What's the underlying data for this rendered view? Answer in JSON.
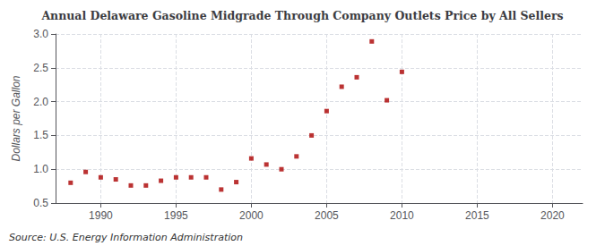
{
  "chart_data": {
    "type": "scatter",
    "title": "Annual Delaware Gasoline Midgrade Through Company Outlets Price by All Sellers",
    "ylabel": "Dollars per Gallon",
    "annotations": [
      "Source: U.S. Energy Information Administration"
    ],
    "x": [
      1988,
      1989,
      1990,
      1991,
      1992,
      1993,
      1994,
      1995,
      1996,
      1997,
      1998,
      1999,
      2000,
      2001,
      2002,
      2003,
      2004,
      2005,
      2006,
      2007,
      2008,
      2009,
      2010
    ],
    "values": [
      0.8,
      0.96,
      0.88,
      0.85,
      0.76,
      0.76,
      0.83,
      0.88,
      0.88,
      0.88,
      0.7,
      0.81,
      1.16,
      1.07,
      1.0,
      1.19,
      1.5,
      1.86,
      2.22,
      2.36,
      2.89,
      2.02,
      2.44
    ],
    "color": "#aa0000",
    "marker": "square",
    "xlim": [
      1987,
      2022
    ],
    "xticks": [
      1990,
      1995,
      2000,
      2005,
      2010,
      2015,
      2020
    ],
    "ylim": [
      0.5,
      3.0
    ],
    "yticks": [
      0.5,
      {
        "value": 1.0,
        "label": "1.0"
      },
      1.5,
      {
        "value": 2.0,
        "label": "2.0"
      },
      2.5,
      {
        "value": 3.0,
        "label": "3.0"
      }
    ],
    "grid": true
  }
}
